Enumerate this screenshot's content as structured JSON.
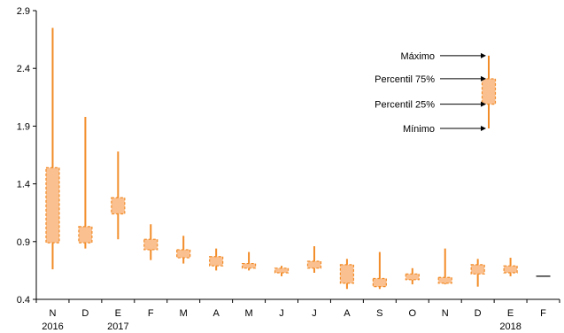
{
  "chart_data": {
    "type": "box",
    "ylim": [
      0.4,
      2.9
    ],
    "y_ticks": [
      "2.9",
      "2.4",
      "1.9",
      "1.4",
      "0.9",
      "0.4"
    ],
    "categories": [
      "N",
      "D",
      "E",
      "F",
      "M",
      "A",
      "M",
      "J",
      "J",
      "A",
      "S",
      "O",
      "N",
      "D",
      "E",
      "F"
    ],
    "year_labels": [
      {
        "index": 0,
        "text": "2016"
      },
      {
        "index": 2,
        "text": "2017"
      },
      {
        "index": 14,
        "text": "2018"
      }
    ],
    "series": [
      {
        "min": 0.66,
        "p25": 0.89,
        "p75": 1.54,
        "max": 2.75
      },
      {
        "min": 0.84,
        "p25": 0.89,
        "p75": 1.03,
        "max": 1.98
      },
      {
        "min": 0.92,
        "p25": 1.14,
        "p75": 1.28,
        "max": 1.68
      },
      {
        "min": 0.74,
        "p25": 0.83,
        "p75": 0.92,
        "max": 1.05
      },
      {
        "min": 0.71,
        "p25": 0.76,
        "p75": 0.83,
        "max": 0.95
      },
      {
        "min": 0.65,
        "p25": 0.69,
        "p75": 0.77,
        "max": 0.84
      },
      {
        "min": 0.65,
        "p25": 0.67,
        "p75": 0.71,
        "max": 0.81
      },
      {
        "min": 0.6,
        "p25": 0.63,
        "p75": 0.67,
        "max": 0.69
      },
      {
        "min": 0.63,
        "p25": 0.67,
        "p75": 0.73,
        "max": 0.86
      },
      {
        "min": 0.49,
        "p25": 0.54,
        "p75": 0.7,
        "max": 0.75
      },
      {
        "min": 0.49,
        "p25": 0.51,
        "p75": 0.58,
        "max": 0.81
      },
      {
        "min": 0.53,
        "p25": 0.57,
        "p75": 0.62,
        "max": 0.67
      },
      {
        "min": 0.53,
        "p25": 0.54,
        "p75": 0.59,
        "max": 0.84
      },
      {
        "min": 0.51,
        "p25": 0.62,
        "p75": 0.7,
        "max": 0.75
      },
      {
        "min": 0.6,
        "p25": 0.63,
        "p75": 0.69,
        "max": 0.76
      },
      {
        "flat": 0.6
      }
    ],
    "legend": {
      "labels": [
        "Máximo",
        "Percentil 75%",
        "Percentil 25%",
        "Mínimo"
      ],
      "sample": {
        "min": 1.88,
        "p25": 2.09,
        "p75": 2.31,
        "max": 2.51
      }
    },
    "colors": {
      "stroke": "#F28C28",
      "fill": "#FAC090",
      "axis": "#000000",
      "text": "#000000"
    }
  }
}
